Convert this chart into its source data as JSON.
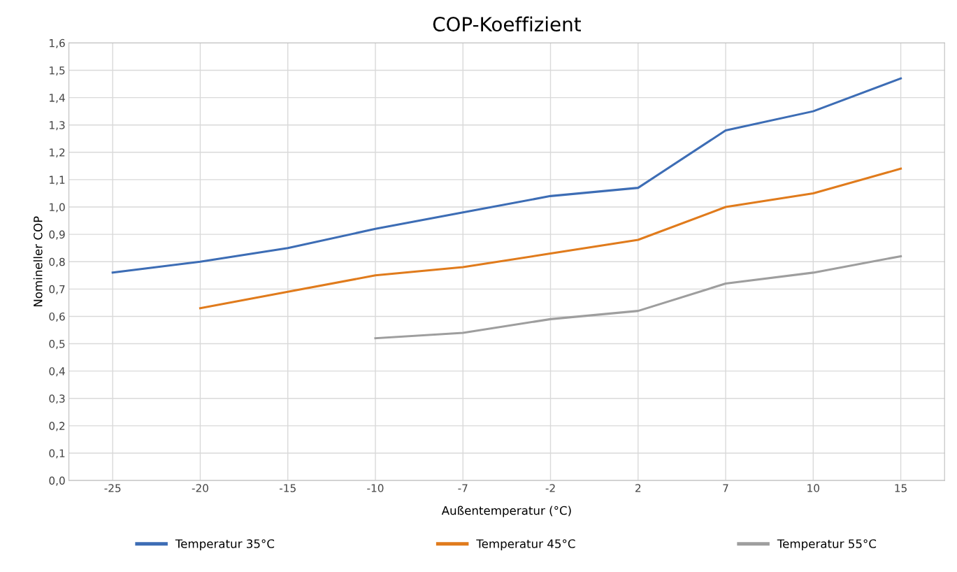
{
  "chart_data": {
    "type": "line",
    "title": "COP-Koeffizient",
    "xlabel": "Außentemperatur (°C)",
    "ylabel": "Nomineller COP",
    "categories": [
      "-25",
      "-20",
      "-15",
      "-10",
      "-7",
      "-2",
      "2",
      "7",
      "10",
      "15"
    ],
    "series": [
      {
        "name": "Temperatur 35°C",
        "color": "#3d6db5",
        "values": [
          0.76,
          0.8,
          0.85,
          0.92,
          0.98,
          1.04,
          1.07,
          1.28,
          1.35,
          1.47
        ]
      },
      {
        "name": "Temperatur 45°C",
        "color": "#e07b1c",
        "values": [
          null,
          0.63,
          0.69,
          0.75,
          0.78,
          0.83,
          0.88,
          1.0,
          1.05,
          1.14
        ]
      },
      {
        "name": "Temperatur 55°C",
        "color": "#9e9e9e",
        "values": [
          null,
          null,
          null,
          0.52,
          0.54,
          0.59,
          0.62,
          0.72,
          0.76,
          0.82
        ]
      }
    ],
    "ylim": [
      0,
      1.6
    ],
    "yticks": [
      {
        "value": 0,
        "label": "0,0"
      },
      {
        "value": 0.1,
        "label": "0,1"
      },
      {
        "value": 0.2,
        "label": "0,2"
      },
      {
        "value": 0.3,
        "label": "0,3"
      },
      {
        "value": 0.4,
        "label": "0,4"
      },
      {
        "value": 0.5,
        "label": "0,5"
      },
      {
        "value": 0.6,
        "label": "0,6"
      },
      {
        "value": 0.7,
        "label": "0,7"
      },
      {
        "value": 0.8,
        "label": "0,8"
      },
      {
        "value": 0.9,
        "label": "0,9"
      },
      {
        "value": 1.0,
        "label": "1,0"
      },
      {
        "value": 1.1,
        "label": "1,1"
      },
      {
        "value": 1.2,
        "label": "1,2"
      },
      {
        "value": 1.3,
        "label": "1,3"
      },
      {
        "value": 1.4,
        "label": "1,4"
      },
      {
        "value": 1.5,
        "label": "1,5"
      },
      {
        "value": 1.6,
        "label": "1,6"
      }
    ],
    "grid": true,
    "legend": "bottom",
    "marker": "none",
    "line_style": "solid"
  }
}
